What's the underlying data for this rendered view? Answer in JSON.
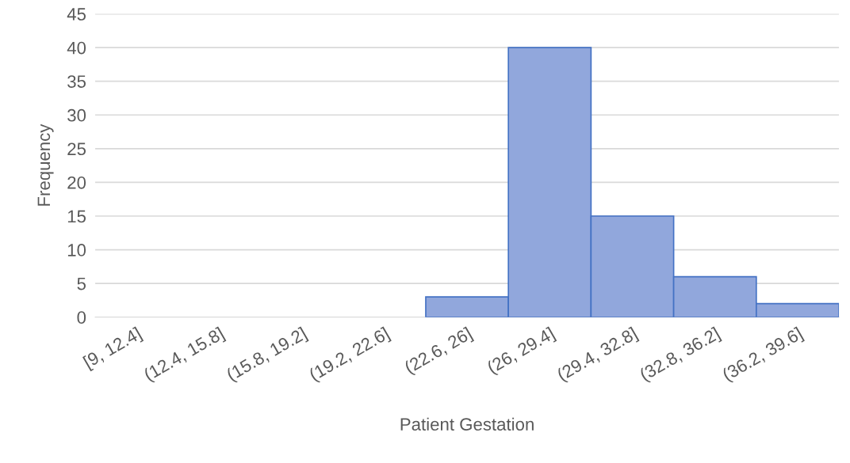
{
  "chart_data": {
    "type": "bar",
    "xlabel": "Patient Gestation",
    "ylabel": "Frequency",
    "categories": [
      "[9, 12.4]",
      "(12.4, 15.8]",
      "(15.8, 19.2]",
      "(19.2, 22.6]",
      "(22.6, 26]",
      "(26, 29.4]",
      "(29.4, 32.8]",
      "(32.8, 36.2]",
      "(36.2, 39.6]"
    ],
    "values": [
      0,
      0,
      0,
      0,
      3,
      40,
      15,
      6,
      2
    ],
    "color": "#91a7dc",
    "ylim": [
      0,
      45
    ],
    "yticks": [
      0,
      5,
      10,
      15,
      20,
      25,
      30,
      35,
      40,
      45
    ],
    "grid": "y",
    "legend": false
  }
}
